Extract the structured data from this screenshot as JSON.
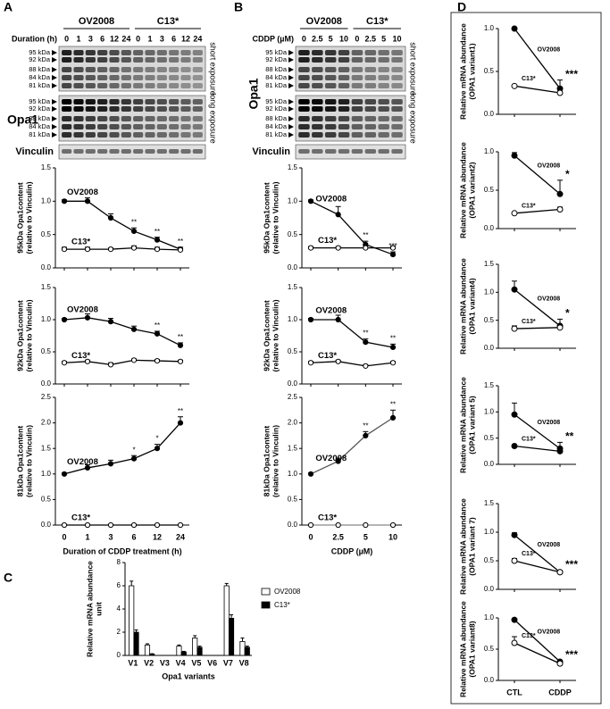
{
  "panels": [
    "A",
    "B",
    "C",
    "D"
  ],
  "blots": [
    {
      "group_label": "Duration (h)",
      "groups": [
        "OV2008",
        "C13*"
      ],
      "lanes": [
        "0",
        "1",
        "3",
        "6",
        "12",
        "24",
        "0",
        "1",
        "3",
        "6",
        "12",
        "24"
      ],
      "protein": "Opa1",
      "markers": [
        "95 kDa",
        "92 kDa",
        "88 kDa",
        "84 kDa",
        "81 kDa"
      ],
      "exposures": [
        "short exposure",
        "long exposure"
      ],
      "loading": "Vinculin"
    },
    {
      "group_label": "CDDP (µM)",
      "groups": [
        "OV2008",
        "C13*"
      ],
      "lanes": [
        "0",
        "2.5",
        "5",
        "10",
        "0",
        "2.5",
        "5",
        "10"
      ],
      "protein": "Opa1",
      "markers": [
        "95 kDa",
        "92 kDa",
        "88 kDa",
        "84 kDa",
        "81 kDa"
      ],
      "exposures": [
        "short exposure",
        "long exposure"
      ],
      "loading": "Vinculin"
    }
  ],
  "chart_data": [
    {
      "type": "line",
      "ylabel": [
        "95kDa Opa1content",
        "(relative to Vinculin)"
      ],
      "ylim": [
        0,
        1.5
      ],
      "yticks": [
        {
          "value": 0,
          "label": "0.0"
        },
        {
          "value": 0.5,
          "label": "0.5"
        },
        {
          "value": 1,
          "label": "1.0"
        },
        {
          "value": 1.5,
          "label": "1.5"
        }
      ],
      "series": [
        {
          "name": "OV2008",
          "color": "#000000",
          "marker_fill": "#000000",
          "values": [
            1.0,
            1.0,
            0.75,
            0.55,
            0.42,
            0.28
          ],
          "errors": [
            0.02,
            0.05,
            0.06,
            0.05,
            0.04,
            0.03
          ],
          "annotations": [
            null,
            null,
            null,
            "**",
            "**",
            "**"
          ]
        },
        {
          "name": "C13*",
          "color": "#000000",
          "marker_fill": "#ffffff",
          "values": [
            0.28,
            0.28,
            0.28,
            0.3,
            0.28,
            0.27
          ],
          "errors": [
            0.03,
            0.03,
            0.02,
            0.03,
            0.03,
            0.02
          ]
        }
      ]
    },
    {
      "type": "line",
      "ylabel": [
        "92kDa Opa1content",
        "(relative to Vinculin)"
      ],
      "ylim": [
        0,
        1.5
      ],
      "yticks": [
        {
          "value": 0,
          "label": "0.0"
        },
        {
          "value": 0.5,
          "label": "0.5"
        },
        {
          "value": 1,
          "label": "1.0"
        },
        {
          "value": 1.5,
          "label": "1.5"
        }
      ],
      "series": [
        {
          "name": "OV2008",
          "color": "#000000",
          "marker_fill": "#000000",
          "values": [
            1.0,
            1.03,
            0.97,
            0.85,
            0.78,
            0.6
          ],
          "errors": [
            0.02,
            0.06,
            0.05,
            0.05,
            0.04,
            0.04
          ],
          "annotations": [
            null,
            null,
            null,
            null,
            "**",
            "**"
          ]
        },
        {
          "name": "C13*",
          "color": "#000000",
          "marker_fill": "#ffffff",
          "values": [
            0.33,
            0.35,
            0.3,
            0.37,
            0.36,
            0.35
          ],
          "errors": [
            0.02,
            0.02,
            0.03,
            0.02,
            0.02,
            0.02
          ]
        }
      ]
    },
    {
      "type": "line",
      "ylabel": [
        "81kDa Opa1content",
        "(relative to Vinculin)"
      ],
      "xlabel": "Duration of CDDP treatment (h)",
      "categories": [
        "0",
        "1",
        "3",
        "6",
        "12",
        "24"
      ],
      "ylim": [
        0,
        2.5
      ],
      "yticks": [
        {
          "value": 0,
          "label": "0.0"
        },
        {
          "value": 0.5,
          "label": "0.5"
        },
        {
          "value": 1,
          "label": "1.0"
        },
        {
          "value": 1.5,
          "label": "1.5"
        },
        {
          "value": 2,
          "label": "2.0"
        },
        {
          "value": 2.5,
          "label": "2.5"
        }
      ],
      "series": [
        {
          "name": "OV2008",
          "color": "#000000",
          "marker_fill": "#000000",
          "values": [
            1.0,
            1.12,
            1.2,
            1.3,
            1.5,
            2.0
          ],
          "errors": [
            0.02,
            0.06,
            0.07,
            0.06,
            0.08,
            0.12
          ],
          "annotations": [
            null,
            null,
            null,
            "*",
            "*",
            "**"
          ]
        },
        {
          "name": "C13*",
          "color": "#000000",
          "marker_fill": "#ffffff",
          "values": [
            0,
            0,
            0,
            0,
            0,
            0
          ]
        }
      ]
    },
    {
      "type": "line",
      "ylabel": [
        "95kDa Opa1content",
        "(relative to Vinculin)"
      ],
      "ylim": [
        0,
        1.5
      ],
      "yticks": [
        {
          "value": 0,
          "label": "0.0"
        },
        {
          "value": 0.5,
          "label": "0.5"
        },
        {
          "value": 1,
          "label": "1.0"
        },
        {
          "value": 1.5,
          "label": "1.5"
        }
      ],
      "series": [
        {
          "name": "OV2008",
          "color": "#000000",
          "marker_fill": "#000000",
          "values": [
            1.0,
            0.8,
            0.35,
            0.2
          ],
          "errors": [
            0.02,
            0.12,
            0.05,
            0.04
          ],
          "annotations": [
            null,
            null,
            "**",
            "***"
          ]
        },
        {
          "name": "C13*",
          "color": "#000000",
          "marker_fill": "#ffffff",
          "values": [
            0.3,
            0.3,
            0.3,
            0.3
          ],
          "errors": [
            0.02,
            0.02,
            0.03,
            0.03
          ]
        }
      ]
    },
    {
      "type": "line",
      "ylabel": [
        "92kDa Opa1content",
        "(relative to Vinculin)"
      ],
      "ylim": [
        0,
        1.5
      ],
      "yticks": [
        {
          "value": 0,
          "label": "0.0"
        },
        {
          "value": 0.5,
          "label": "0.5"
        },
        {
          "value": 1,
          "label": "1.0"
        },
        {
          "value": 1.5,
          "label": "1.5"
        }
      ],
      "series": [
        {
          "name": "OV2008",
          "color": "#000000",
          "marker_fill": "#000000",
          "values": [
            1.0,
            1.0,
            0.65,
            0.57
          ],
          "errors": [
            0.02,
            0.07,
            0.05,
            0.05
          ],
          "annotations": [
            null,
            null,
            "**",
            "**"
          ]
        },
        {
          "name": "C13*",
          "color": "#000000",
          "marker_fill": "#ffffff",
          "values": [
            0.33,
            0.35,
            0.28,
            0.33
          ],
          "errors": [
            0.02,
            0.02,
            0.02,
            0.02
          ]
        }
      ]
    },
    {
      "type": "line",
      "ylabel": [
        "81kDa Opa1content",
        "(relative to Vinculin)"
      ],
      "xlabel": "CDDP (µM)",
      "categories": [
        "0",
        "2.5",
        "5",
        "10"
      ],
      "ylim": [
        0,
        2.5
      ],
      "yticks": [
        {
          "value": 0,
          "label": "0.0"
        },
        {
          "value": 0.5,
          "label": "0.5"
        },
        {
          "value": 1,
          "label": "1.0"
        },
        {
          "value": 1.5,
          "label": "1.5"
        },
        {
          "value": 2,
          "label": "2.0"
        },
        {
          "value": 2.5,
          "label": "2.5"
        }
      ],
      "series": [
        {
          "name": "OV2008",
          "color": "#555555",
          "marker_fill": "#000000",
          "values": [
            1.0,
            1.25,
            1.75,
            2.1
          ],
          "errors": [
            0.02,
            0.06,
            0.08,
            0.15
          ],
          "annotations": [
            null,
            null,
            "**",
            "**"
          ]
        },
        {
          "name": "C13*",
          "color": "#888888",
          "marker_fill": "#ffffff",
          "values": [
            0,
            0,
            0,
            0
          ]
        }
      ]
    },
    {
      "type": "bar",
      "ylabel": [
        "Relative mRNA abundance",
        "unit"
      ],
      "xlabel": "Opa1 variants",
      "categories": [
        "V1",
        "V2",
        "V3",
        "V4",
        "V5",
        "V6",
        "V7",
        "V8"
      ],
      "ylim": [
        0,
        8
      ],
      "yticks": [
        0,
        2,
        4,
        6,
        8
      ],
      "series": [
        {
          "name": "OV2008",
          "color": "#ffffff",
          "values": [
            6,
            0.9,
            0,
            0.8,
            1.5,
            0,
            6,
            1.2
          ],
          "errors": [
            0.4,
            0.1,
            0,
            0.1,
            0.2,
            0,
            0.2,
            0.3
          ]
        },
        {
          "name": "C13*",
          "color": "#000000",
          "values": [
            2,
            0.1,
            0,
            0.3,
            0.7,
            0,
            3.2,
            0.7
          ],
          "errors": [
            0.2,
            0.05,
            0,
            0.05,
            0.1,
            0,
            0.3,
            0.1
          ]
        }
      ]
    },
    {
      "type": "line",
      "ylabel": [
        "Relative mRNA abundance",
        "(OPA1 variant1)"
      ],
      "ylim": [
        0,
        1
      ],
      "yticks": [
        {
          "value": 0,
          "label": "0.0"
        },
        {
          "value": 0.5,
          "label": "0.5"
        },
        {
          "value": 1,
          "label": "1.0"
        }
      ],
      "series": [
        {
          "name": "OV2008",
          "color": "#000000",
          "marker_fill": "#000000",
          "values": [
            1.0,
            0.3
          ],
          "errors": [
            0.01,
            0.1
          ],
          "annotations": [
            null,
            "***"
          ]
        },
        {
          "name": "C13*",
          "color": "#000000",
          "marker_fill": "#ffffff",
          "values": [
            0.33,
            0.25
          ],
          "errors": [
            0.01,
            0.03
          ]
        }
      ]
    },
    {
      "type": "line",
      "ylabel": [
        "Relative mRNA abundance",
        "(OPA1 variant2)"
      ],
      "ylim": [
        0,
        1
      ],
      "yticks": [
        {
          "value": 0,
          "label": "0.0"
        },
        {
          "value": 0.5,
          "label": "0.5"
        },
        {
          "value": 1,
          "label": "1.0"
        }
      ],
      "series": [
        {
          "name": "OV2008",
          "color": "#000000",
          "marker_fill": "#000000",
          "values": [
            0.95,
            0.45
          ],
          "errors": [
            0.04,
            0.18
          ],
          "annotations": [
            null,
            "*"
          ]
        },
        {
          "name": "C13*",
          "color": "#000000",
          "marker_fill": "#ffffff",
          "values": [
            0.2,
            0.25
          ],
          "errors": [
            0.01,
            0.03
          ]
        }
      ]
    },
    {
      "type": "line",
      "ylabel": [
        "Relative mRNA abundance",
        "(OPA1 variant4)"
      ],
      "ylim": [
        0,
        1.5
      ],
      "yticks": [
        {
          "value": 0,
          "label": "0.0"
        },
        {
          "value": 0.5,
          "label": "0.5"
        },
        {
          "value": 1,
          "label": "1.0"
        },
        {
          "value": 1.5,
          "label": "1.5"
        }
      ],
      "series": [
        {
          "name": "OV2008",
          "color": "#000000",
          "marker_fill": "#000000",
          "values": [
            1.05,
            0.4
          ],
          "errors": [
            0.15,
            0.12
          ],
          "annotations": [
            null,
            "*"
          ]
        },
        {
          "name": "C13*",
          "color": "#000000",
          "marker_fill": "#ffffff",
          "values": [
            0.35,
            0.37
          ],
          "errors": [
            0.05,
            0.05
          ]
        }
      ]
    },
    {
      "type": "line",
      "ylabel": [
        "Relative mRNA abundance",
        "(OPA1 variant 5)"
      ],
      "ylim": [
        0,
        1.5
      ],
      "yticks": [
        {
          "value": 0,
          "label": "0.0"
        },
        {
          "value": 0.5,
          "label": "0.5"
        },
        {
          "value": 1,
          "label": "1.0"
        },
        {
          "value": 1.5,
          "label": "1.5"
        }
      ],
      "series": [
        {
          "name": "OV2008",
          "color": "#000000",
          "marker_fill": "#000000",
          "values": [
            0.95,
            0.3
          ],
          "errors": [
            0.22,
            0.12
          ],
          "annotations": [
            null,
            "**"
          ]
        },
        {
          "name": "C13*",
          "color": "#000000",
          "marker_fill": "#000000",
          "values": [
            0.35,
            0.25
          ],
          "errors": [
            0.01,
            0.02
          ]
        }
      ]
    },
    {
      "type": "line",
      "ylabel": [
        "Relative mRNA abundance",
        "(OPA1 variant 7)"
      ],
      "ylim": [
        0,
        1.5
      ],
      "yticks": [
        {
          "value": 0,
          "label": "0.0"
        },
        {
          "value": 0.5,
          "label": "0.5"
        },
        {
          "value": 1,
          "label": "1.0"
        },
        {
          "value": 1.5,
          "label": "1.5"
        }
      ],
      "series": [
        {
          "name": "OV2008",
          "color": "#000000",
          "marker_fill": "#000000",
          "values": [
            0.95,
            0.3
          ],
          "errors": [
            0.04,
            0.03
          ],
          "annotations": [
            null,
            "***"
          ]
        },
        {
          "name": "C13*",
          "color": "#000000",
          "marker_fill": "#ffffff",
          "values": [
            0.5,
            0.3
          ],
          "errors": [
            0.04,
            0.02
          ]
        }
      ]
    },
    {
      "type": "line",
      "ylabel": [
        "Relative mRNA abundance",
        "(OPA1 variant8)"
      ],
      "categories": [
        "CTL",
        "CDDP"
      ],
      "ylim": [
        0,
        1
      ],
      "yticks": [
        {
          "value": 0,
          "label": "0.0"
        },
        {
          "value": 0.5,
          "label": "0.5"
        },
        {
          "value": 1,
          "label": "1.0"
        }
      ],
      "series": [
        {
          "name": "OV2008",
          "color": "#000000",
          "marker_fill": "#000000",
          "values": [
            0.97,
            0.3
          ],
          "errors": [
            0.01,
            0.02
          ],
          "annotations": [
            null,
            "***"
          ]
        },
        {
          "name": "C13*",
          "color": "#000000",
          "marker_fill": "#ffffff",
          "values": [
            0.6,
            0.27
          ],
          "errors": [
            0.1,
            0.02
          ]
        }
      ]
    }
  ]
}
